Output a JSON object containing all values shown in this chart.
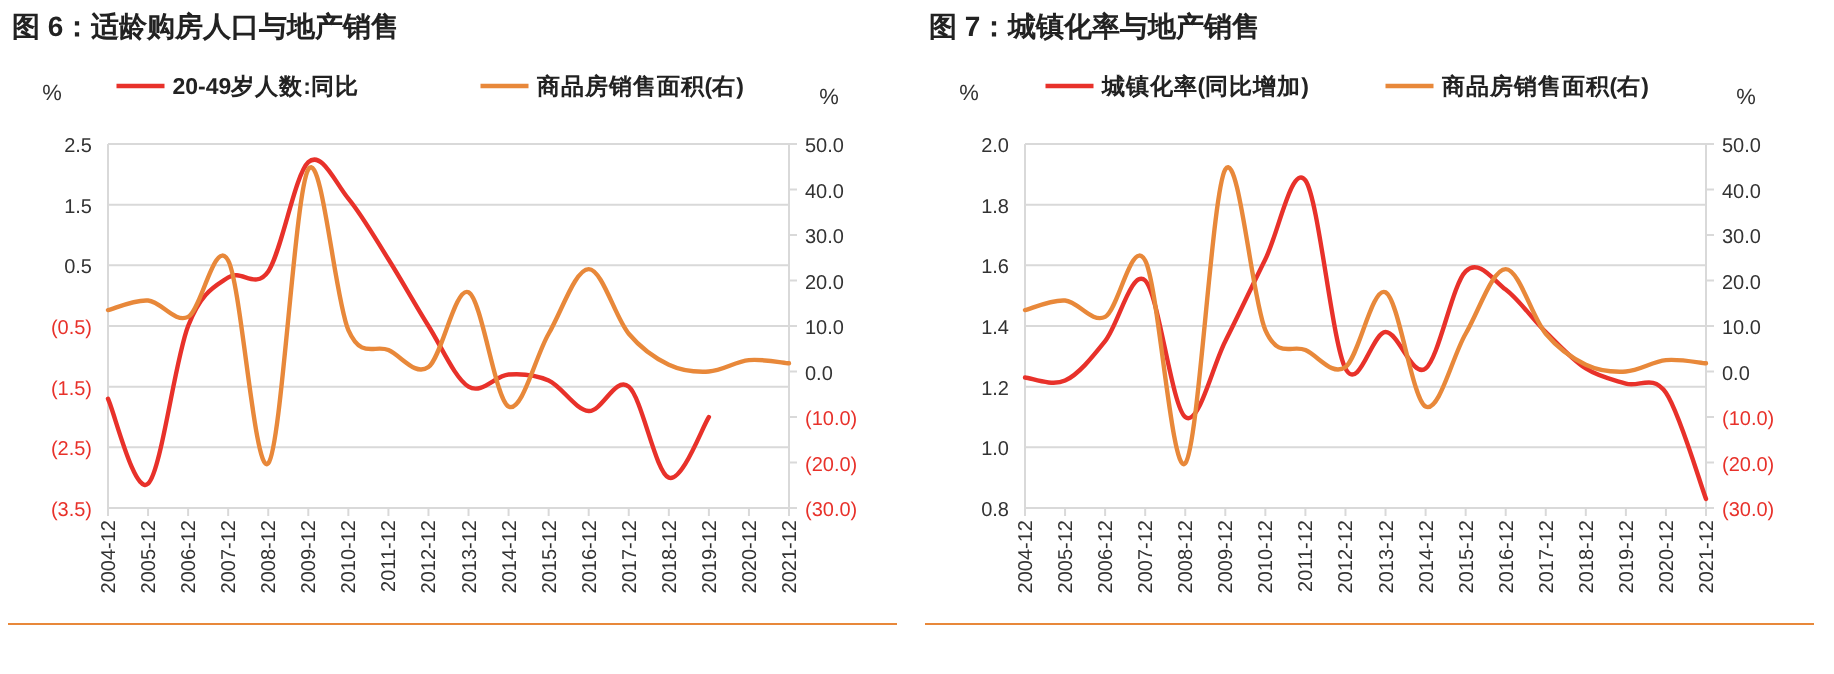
{
  "chart_data": [
    {
      "type": "line",
      "title": "图 6：适龄购房人口与地产销售",
      "categories": [
        "2004-12",
        "2005-12",
        "2006-12",
        "2007-12",
        "2008-12",
        "2009-12",
        "2010-12",
        "2011-12",
        "2012-12",
        "2013-12",
        "2014-12",
        "2015-12",
        "2016-12",
        "2017-12",
        "2018-12",
        "2019-12",
        "2020-12",
        "2021-12"
      ],
      "series": [
        {
          "name": "20-49岁人数:同比",
          "color": "#e8312a",
          "values": [
            -1.7,
            -3.1,
            -0.5,
            0.3,
            0.4,
            2.2,
            1.6,
            0.6,
            -0.5,
            -1.5,
            -1.3,
            -1.4,
            -1.9,
            -1.5,
            -3.0,
            -2.0,
            null,
            null
          ]
        },
        {
          "name": "商品房销售面积(右)",
          "color": "#e8883a",
          "axis": "y2",
          "values": [
            13.5,
            15.6,
            12,
            24.4,
            -20.2,
            44.4,
            9.1,
            4.7,
            1.0,
            17.4,
            -7.7,
            8.3,
            22.5,
            8.3,
            1.5,
            0,
            2.5,
            1.8
          ]
        }
      ],
      "ylabel": "%",
      "y2label": "%",
      "ylim": [
        -3.5,
        2.5
      ],
      "yticks": [
        {
          "value": 2.5,
          "label": "2.5"
        },
        {
          "value": 1.5,
          "label": "1.5"
        },
        {
          "value": 0.5,
          "label": "0.5"
        },
        {
          "value": -0.5,
          "label": "(0.5)"
        },
        {
          "value": -1.5,
          "label": "(1.5)"
        },
        {
          "value": -2.5,
          "label": "(2.5)"
        },
        {
          "value": -3.5,
          "label": "(3.5)"
        }
      ],
      "y2lim": [
        -30,
        50
      ],
      "y2ticks": [
        {
          "value": 50,
          "label": "50.0"
        },
        {
          "value": 40,
          "label": "40.0"
        },
        {
          "value": 30,
          "label": "30.0"
        },
        {
          "value": 20,
          "label": "20.0"
        },
        {
          "value": 10,
          "label": "10.0"
        },
        {
          "value": 0,
          "label": "0.0"
        },
        {
          "value": -10,
          "label": "(10.0)"
        },
        {
          "value": -20,
          "label": "(20.0)"
        },
        {
          "value": -30,
          "label": "(30.0)"
        }
      ],
      "grid": "y",
      "legend": "top"
    },
    {
      "type": "line",
      "title": "图 7：城镇化率与地产销售",
      "categories": [
        "2004-12",
        "2005-12",
        "2006-12",
        "2007-12",
        "2008-12",
        "2009-12",
        "2010-12",
        "2011-12",
        "2012-12",
        "2013-12",
        "2014-12",
        "2015-12",
        "2016-12",
        "2017-12",
        "2018-12",
        "2019-12",
        "2020-12",
        "2021-12"
      ],
      "series": [
        {
          "name": "城镇化率(同比增加)",
          "color": "#e8312a",
          "values": [
            1.23,
            1.22,
            1.35,
            1.55,
            1.1,
            1.35,
            1.62,
            1.88,
            1.26,
            1.38,
            1.26,
            1.58,
            1.52,
            1.38,
            1.26,
            1.21,
            1.18,
            0.83
          ]
        },
        {
          "name": "商品房销售面积(右)",
          "color": "#e8883a",
          "axis": "y2",
          "values": [
            13.5,
            15.6,
            12,
            24.4,
            -20.2,
            44.4,
            9.1,
            4.7,
            1.0,
            17.4,
            -7.7,
            8.3,
            22.5,
            8.3,
            1.5,
            0,
            2.5,
            1.8
          ]
        }
      ],
      "ylabel": "%",
      "y2label": "%",
      "ylim": [
        0.8,
        2.0
      ],
      "yticks": [
        {
          "value": 2.0,
          "label": "2.0"
        },
        {
          "value": 1.8,
          "label": "1.8"
        },
        {
          "value": 1.6,
          "label": "1.6"
        },
        {
          "value": 1.4,
          "label": "1.4"
        },
        {
          "value": 1.2,
          "label": "1.2"
        },
        {
          "value": 1.0,
          "label": "1.0"
        },
        {
          "value": 0.8,
          "label": "0.8"
        }
      ],
      "y2lim": [
        -30,
        50
      ],
      "y2ticks": [
        {
          "value": 50,
          "label": "50.0"
        },
        {
          "value": 40,
          "label": "40.0"
        },
        {
          "value": 30,
          "label": "30.0"
        },
        {
          "value": 20,
          "label": "20.0"
        },
        {
          "value": 10,
          "label": "10.0"
        },
        {
          "value": 0,
          "label": "0.0"
        },
        {
          "value": -10,
          "label": "(10.0)"
        },
        {
          "value": -20,
          "label": "(20.0)"
        },
        {
          "value": -30,
          "label": "(30.0)"
        }
      ],
      "grid": "y",
      "legend": "top"
    }
  ]
}
